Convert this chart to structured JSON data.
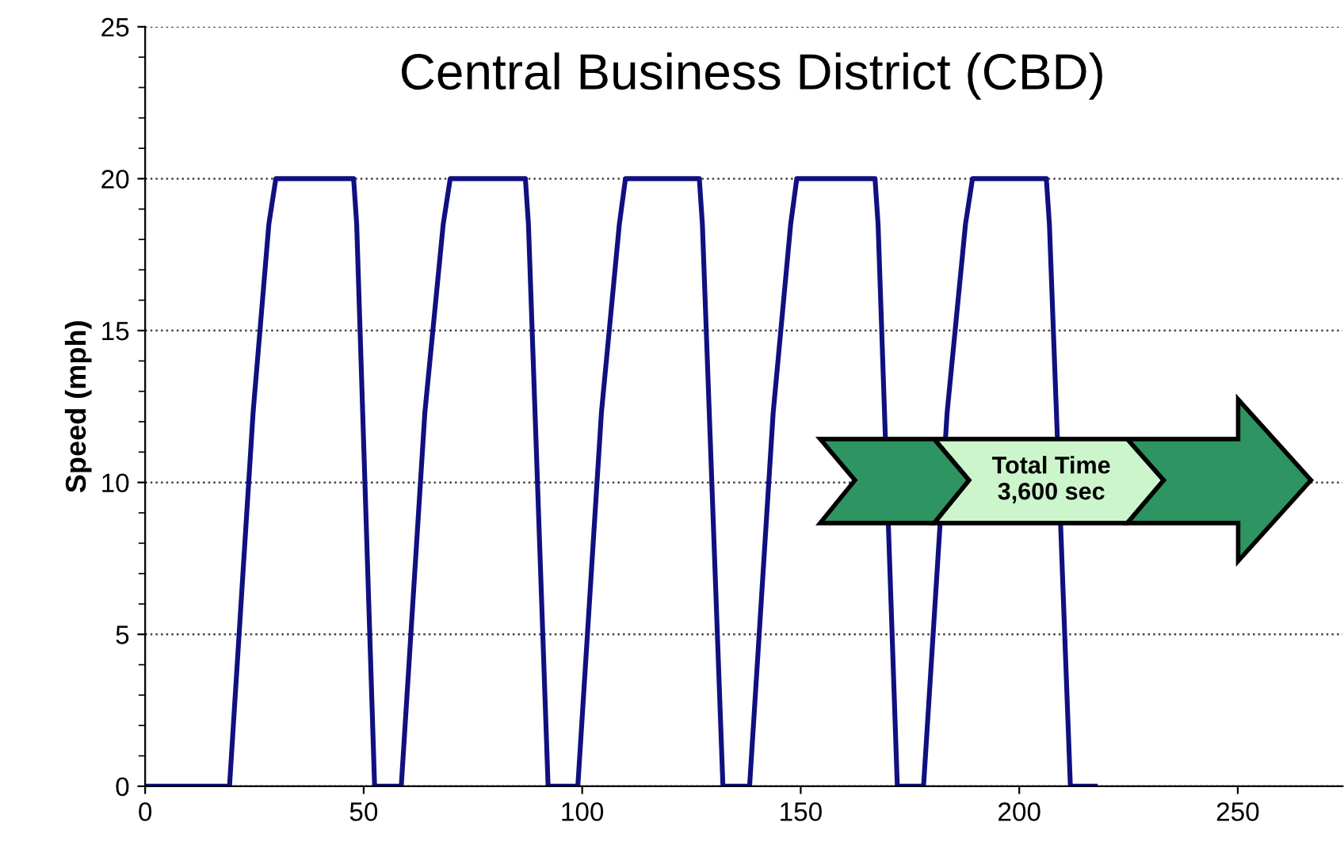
{
  "chart_data": {
    "type": "line",
    "title": "Central Business District (CBD)",
    "ylabel": "Speed (mph)",
    "annotations": [
      "Total Time\n3,600 sec"
    ],
    "series": [
      {
        "color": "#101080",
        "x": [
          0,
          19.3,
          24.7,
          28.3,
          29.9,
          47.7,
          48.4,
          52.5,
          58.6,
          64.0,
          68.2,
          69.8,
          87.0,
          87.7,
          92.2,
          99.0,
          104.4,
          108.5,
          109.9,
          126.8,
          127.5,
          132.2,
          138.3,
          143.7,
          147.7,
          149.1,
          167.0,
          167.7,
          172.1,
          178.1,
          183.5,
          187.7,
          189.3,
          206.2,
          206.9,
          211.7,
          217.4
        ],
        "values": [
          0,
          0,
          12.3,
          18.5,
          20,
          20,
          18.5,
          0,
          0,
          12.3,
          18.5,
          20,
          20,
          18.5,
          0,
          0,
          12.3,
          18.5,
          20,
          20,
          18.5,
          0,
          0,
          12.3,
          18.5,
          20,
          20,
          18.5,
          0,
          0,
          12.3,
          18.5,
          20,
          20,
          18.5,
          0,
          0
        ]
      }
    ],
    "xlim": [
      0,
      274
    ],
    "xticks": [
      0,
      50,
      100,
      150,
      200,
      250
    ],
    "ylim": [
      0,
      25
    ],
    "yticks": [
      0,
      5,
      10,
      15,
      20,
      25
    ],
    "grid": "y",
    "marker": "none",
    "line_style": "solid",
    "legend": false
  }
}
